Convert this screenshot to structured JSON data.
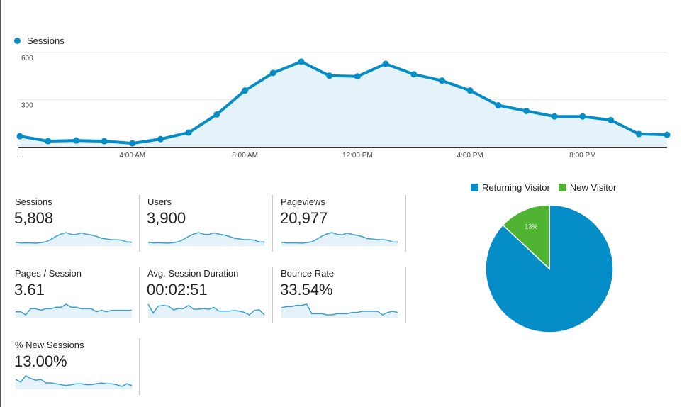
{
  "chart_data": [
    {
      "type": "area",
      "legend": "top-left",
      "series": [
        {
          "name": "Sessions",
          "color": "#058dc7",
          "values": [
            67,
            36,
            40,
            36,
            22,
            49,
            90,
            206,
            358,
            470,
            542,
            452,
            448,
            528,
            461,
            421,
            358,
            264,
            228,
            193,
            193,
            170,
            81,
            76
          ]
        }
      ],
      "x_tick_labels": [
        "…",
        "4:00 AM",
        "8:00 AM",
        "12:00 PM",
        "4:00 PM",
        "8:00 PM"
      ],
      "x_tick_index": [
        0,
        4,
        8,
        12,
        16,
        20
      ],
      "y_tick_labels": [
        "300",
        "600"
      ],
      "ylim": [
        0,
        600
      ],
      "grid": true
    },
    {
      "type": "pie",
      "legend": "top",
      "slices": [
        {
          "name": "Returning Visitor",
          "value": 87,
          "label": "87%",
          "color": "#058dc7"
        },
        {
          "name": "New Visitor",
          "value": 13,
          "label": "13%",
          "color": "#50b432"
        }
      ]
    }
  ],
  "metrics": [
    {
      "label": "Sessions",
      "value": "5,808",
      "spark": [
        67,
        36,
        40,
        36,
        22,
        49,
        90,
        206,
        358,
        470,
        542,
        452,
        448,
        528,
        461,
        421,
        358,
        264,
        228,
        193,
        193,
        170,
        81,
        76
      ]
    },
    {
      "label": "Users",
      "value": "3,900",
      "spark": [
        60,
        34,
        36,
        33,
        20,
        45,
        85,
        200,
        340,
        450,
        520,
        440,
        430,
        505,
        445,
        405,
        345,
        255,
        220,
        186,
        186,
        165,
        80,
        74
      ]
    },
    {
      "label": "Pageviews",
      "value": "20,977",
      "spark": [
        60,
        34,
        36,
        33,
        22,
        48,
        92,
        215,
        370,
        480,
        545,
        460,
        430,
        520,
        450,
        410,
        345,
        250,
        225,
        196,
        196,
        172,
        85,
        80
      ]
    },
    {
      "label": "Pages / Session",
      "value": "3.61",
      "spark": [
        3.4,
        3.4,
        3.2,
        3.6,
        3.6,
        3.5,
        3.6,
        3.6,
        3.7,
        3.7,
        3.9,
        3.7,
        3.7,
        3.6,
        3.6,
        3.6,
        3.4,
        3.5,
        3.4,
        3.5,
        3.5,
        3.5,
        3.5,
        3.5
      ]
    },
    {
      "label": "Avg. Session Duration",
      "value": "00:02:51",
      "spark": [
        3.6,
        2.2,
        3.3,
        3.4,
        3.3,
        2.7,
        2.9,
        2.9,
        3.4,
        2.8,
        2.8,
        2.9,
        2.8,
        3.1,
        2.5,
        2.5,
        2.5,
        2.6,
        2.5,
        2.3,
        1.9,
        2.6,
        2.7,
        1.9
      ]
    },
    {
      "label": "Bounce Rate",
      "value": "33.54%",
      "spark": [
        36,
        37,
        37,
        38,
        38,
        39,
        31,
        31,
        31,
        30,
        30,
        31,
        31,
        31,
        32,
        32,
        33,
        33,
        33,
        33,
        30,
        32,
        33,
        32
      ]
    },
    {
      "label": "% New Sessions",
      "value": "13.00%",
      "spark": [
        16,
        13,
        20,
        17,
        15,
        16,
        12,
        12,
        11,
        10,
        9,
        10,
        11,
        11,
        10,
        10,
        11,
        12,
        11,
        11,
        10,
        8,
        11,
        9
      ]
    }
  ]
}
